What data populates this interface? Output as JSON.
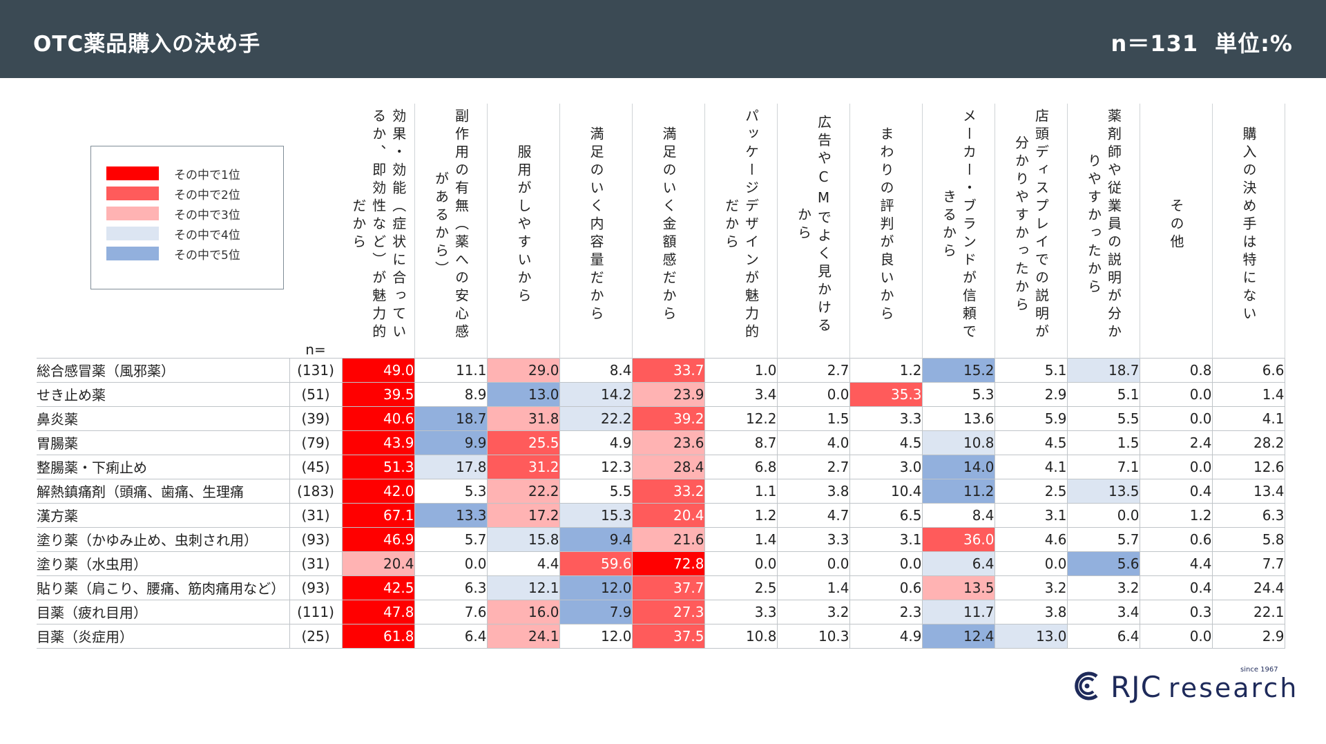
{
  "header": {
    "title": "OTC薬品購入の決め手",
    "n": "n＝131",
    "unit": "単位:%"
  },
  "legend": {
    "items": [
      {
        "label": "その中で1位",
        "color": "#ff0000"
      },
      {
        "label": "その中で2位",
        "color": "#ff5b5b"
      },
      {
        "label": "その中で3位",
        "color": "#ffb3b3"
      },
      {
        "label": "その中で4位",
        "color": "#dce5f2"
      },
      {
        "label": "その中で5位",
        "color": "#92b0dd"
      }
    ]
  },
  "logo": {
    "brand": "RJC",
    "sub": "research",
    "since": "since 1967"
  },
  "chart_data": {
    "type": "table",
    "title": "OTC薬品購入の決め手",
    "n_header": "n=",
    "columns": [
      "効果・効能（症状に合っているか、即効性など）が魅力的だから",
      "副作用の有無（薬への安心感があるから）",
      "服用がしやすいから",
      "満足のいく内容量だから",
      "満足のいく金額感だから",
      "パッケージデザインが魅力的だから",
      "広告やCMでよく見かけるから",
      "まわりの評判が良いから",
      "メーカー・ブランドが信頼できるから",
      "店頭ディスプレイでの説明が分かりやすかったから",
      "薬剤師や従業員の説明が分かりやすかったから",
      "その他",
      "購入の決め手は特にない"
    ],
    "rows": [
      {
        "label": "総合感冒薬（風邪薬）",
        "n": "(131)",
        "values": [
          "49.0",
          "11.1",
          "29.0",
          "8.4",
          "33.7",
          "1.0",
          "2.7",
          "1.2",
          "15.2",
          "5.1",
          "18.7",
          "0.8",
          "6.6"
        ],
        "ranks": [
          1,
          0,
          3,
          0,
          2,
          0,
          0,
          0,
          5,
          0,
          4,
          0,
          0
        ]
      },
      {
        "label": "せき止め薬",
        "n": "(51)",
        "values": [
          "39.5",
          "8.9",
          "13.0",
          "14.2",
          "23.9",
          "3.4",
          "0.0",
          "35.3",
          "5.3",
          "2.9",
          "5.1",
          "0.0",
          "1.4"
        ],
        "ranks": [
          1,
          0,
          5,
          4,
          3,
          0,
          0,
          2,
          0,
          0,
          0,
          0,
          0
        ]
      },
      {
        "label": "鼻炎薬",
        "n": "(39)",
        "values": [
          "40.6",
          "18.7",
          "31.8",
          "22.2",
          "39.2",
          "12.2",
          "1.5",
          "3.3",
          "13.6",
          "5.9",
          "5.5",
          "0.0",
          "4.1"
        ],
        "ranks": [
          1,
          5,
          3,
          4,
          2,
          0,
          0,
          0,
          0,
          0,
          0,
          0,
          0
        ]
      },
      {
        "label": "胃腸薬",
        "n": "(79)",
        "values": [
          "43.9",
          "9.9",
          "25.5",
          "4.9",
          "23.6",
          "8.7",
          "4.0",
          "4.5",
          "10.8",
          "4.5",
          "1.5",
          "2.4",
          "28.2"
        ],
        "ranks": [
          1,
          5,
          2,
          0,
          3,
          0,
          0,
          0,
          4,
          0,
          0,
          0,
          0
        ]
      },
      {
        "label": "整腸薬・下痢止め",
        "n": "(45)",
        "values": [
          "51.3",
          "17.8",
          "31.2",
          "12.3",
          "28.4",
          "6.8",
          "2.7",
          "3.0",
          "14.0",
          "4.1",
          "7.1",
          "0.0",
          "12.6"
        ],
        "ranks": [
          1,
          4,
          2,
          0,
          3,
          0,
          0,
          0,
          5,
          0,
          0,
          0,
          0
        ]
      },
      {
        "label": "解熱鎮痛剤（頭痛、歯痛、生理痛",
        "n": "(183)",
        "values": [
          "42.0",
          "5.3",
          "22.2",
          "5.5",
          "33.2",
          "1.1",
          "3.8",
          "10.4",
          "11.2",
          "2.5",
          "13.5",
          "0.4",
          "13.4"
        ],
        "ranks": [
          1,
          0,
          3,
          0,
          2,
          0,
          0,
          0,
          5,
          0,
          4,
          0,
          0
        ]
      },
      {
        "label": "漢方薬",
        "n": "(31)",
        "values": [
          "67.1",
          "13.3",
          "17.2",
          "15.3",
          "20.4",
          "1.2",
          "4.7",
          "6.5",
          "8.4",
          "3.1",
          "0.0",
          "1.2",
          "6.3"
        ],
        "ranks": [
          1,
          5,
          3,
          4,
          2,
          0,
          0,
          0,
          0,
          0,
          0,
          0,
          0
        ]
      },
      {
        "label": "塗り薬（かゆみ止め、虫刺され用）",
        "n": "(93)",
        "values": [
          "46.9",
          "5.7",
          "15.8",
          "9.4",
          "21.6",
          "1.4",
          "3.3",
          "3.1",
          "36.0",
          "4.6",
          "5.7",
          "0.6",
          "5.8"
        ],
        "ranks": [
          1,
          0,
          4,
          5,
          3,
          0,
          0,
          0,
          2,
          0,
          0,
          0,
          0
        ]
      },
      {
        "label": "塗り薬（水虫用）",
        "n": "(31)",
        "values": [
          "20.4",
          "0.0",
          "4.4",
          "59.6",
          "72.8",
          "0.0",
          "0.0",
          "0.0",
          "6.4",
          "0.0",
          "5.6",
          "4.4",
          "7.7"
        ],
        "ranks": [
          3,
          0,
          0,
          2,
          1,
          0,
          0,
          0,
          4,
          0,
          5,
          0,
          0
        ]
      },
      {
        "label": "貼り薬（肩こり、腰痛、筋肉痛用など）",
        "n": "(93)",
        "values": [
          "42.5",
          "6.3",
          "12.1",
          "12.0",
          "37.7",
          "2.5",
          "1.4",
          "0.6",
          "13.5",
          "3.2",
          "3.2",
          "0.4",
          "24.4"
        ],
        "ranks": [
          1,
          0,
          4,
          5,
          2,
          0,
          0,
          0,
          3,
          0,
          0,
          0,
          0
        ]
      },
      {
        "label": "目薬（疲れ目用）",
        "n": "(111)",
        "values": [
          "47.8",
          "7.6",
          "16.0",
          "7.9",
          "27.3",
          "3.3",
          "3.2",
          "2.3",
          "11.7",
          "3.8",
          "3.4",
          "0.3",
          "22.1"
        ],
        "ranks": [
          1,
          0,
          3,
          5,
          2,
          0,
          0,
          0,
          4,
          0,
          0,
          0,
          0
        ]
      },
      {
        "label": "目薬（炎症用）",
        "n": "(25)",
        "values": [
          "61.8",
          "6.4",
          "24.1",
          "12.0",
          "37.5",
          "10.8",
          "10.3",
          "4.9",
          "12.4",
          "13.0",
          "6.4",
          "0.0",
          "2.9"
        ],
        "ranks": [
          1,
          0,
          3,
          0,
          2,
          0,
          0,
          0,
          5,
          4,
          0,
          0,
          0
        ]
      }
    ]
  }
}
